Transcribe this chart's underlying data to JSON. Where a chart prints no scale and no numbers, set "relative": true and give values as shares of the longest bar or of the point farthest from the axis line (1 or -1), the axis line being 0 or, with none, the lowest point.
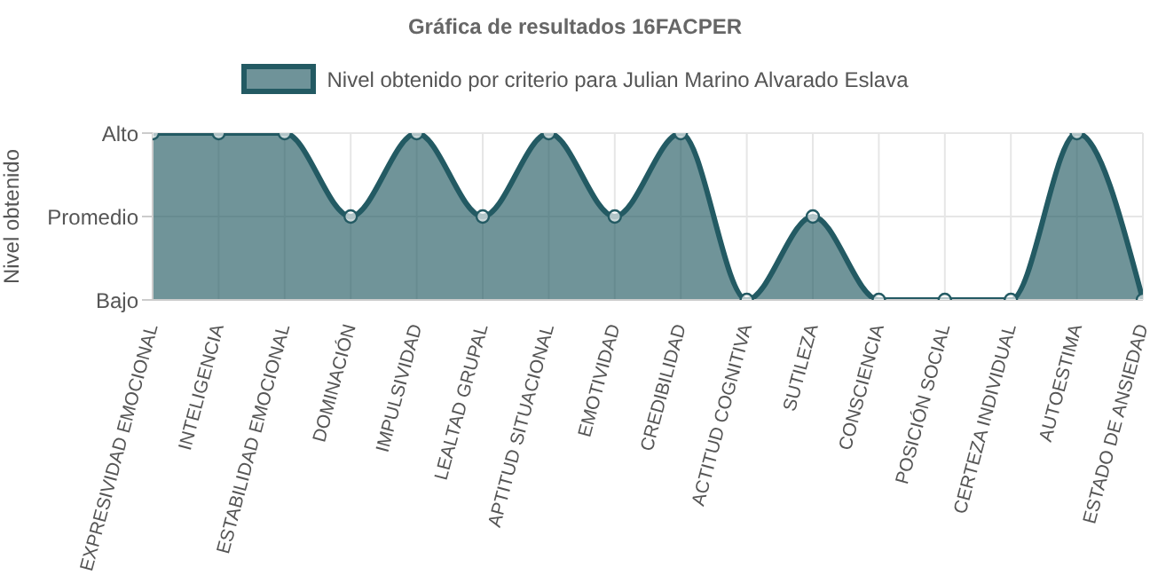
{
  "chart_data": {
    "type": "area",
    "title": "Gráfica de resultados 16FACPER",
    "ylabel": "Nivel obtenido",
    "categories": [
      "EXPRESIVIDAD EMOCIONAL",
      "INTELIGENCIA",
      "ESTABILIDAD EMOCIONAL",
      "DOMINACIÓN",
      "IMPULSIVIDAD",
      "LEALTAD GRUPAL",
      "APTITUD SITUACIONAL",
      "EMOTIVIDAD",
      "CREDIBILIDAD",
      "ACTITUD COGNITIVA",
      "SUTILEZA",
      "CONSCIENCIA",
      "POSICIÓN SOCIAL",
      "CERTEZA INDIVIDUAL",
      "AUTOESTIMA",
      "ESTADO DE ANSIEDAD"
    ],
    "series": [
      {
        "name": "Nivel obtenido por criterio para Julian Marino Alvarado Eslava",
        "color": "#235a63",
        "values": [
          1,
          1,
          1,
          0.5,
          1,
          0.5,
          1,
          0.5,
          1,
          0,
          0.5,
          0,
          0,
          0,
          1,
          0
        ]
      }
    ],
    "relative": true,
    "y_categories": [
      "Alto",
      "Promedio",
      "Bajo"
    ],
    "grid": true,
    "legend": "top",
    "marker": "circle",
    "line_style": "solid"
  }
}
